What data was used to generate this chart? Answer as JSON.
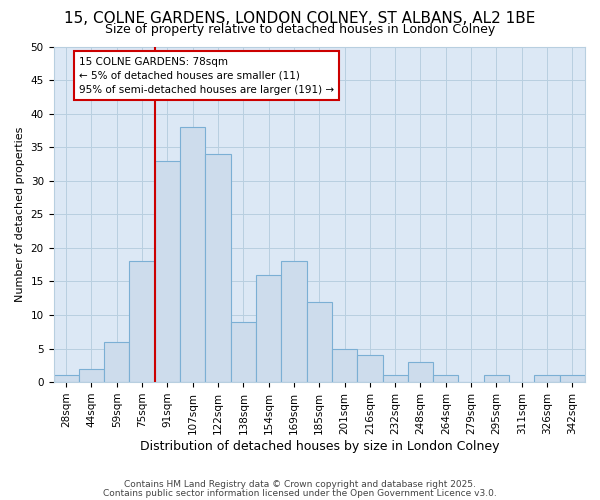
{
  "title_line1": "15, COLNE GARDENS, LONDON COLNEY, ST ALBANS, AL2 1BE",
  "title_line2": "Size of property relative to detached houses in London Colney",
  "xlabel": "Distribution of detached houses by size in London Colney",
  "ylabel": "Number of detached properties",
  "categories": [
    "28sqm",
    "44sqm",
    "59sqm",
    "75sqm",
    "91sqm",
    "107sqm",
    "122sqm",
    "138sqm",
    "154sqm",
    "169sqm",
    "185sqm",
    "201sqm",
    "216sqm",
    "232sqm",
    "248sqm",
    "264sqm",
    "279sqm",
    "295sqm",
    "311sqm",
    "326sqm",
    "342sqm"
  ],
  "values": [
    1,
    2,
    6,
    18,
    33,
    38,
    34,
    9,
    16,
    18,
    12,
    5,
    4,
    1,
    3,
    1,
    0,
    1,
    0,
    1,
    1
  ],
  "bar_color": "#cddcec",
  "bar_edge_color": "#7bafd4",
  "vline_index": 3,
  "vline_color": "#cc0000",
  "annotation_text": "15 COLNE GARDENS: 78sqm\n← 5% of detached houses are smaller (11)\n95% of semi-detached houses are larger (191) →",
  "annotation_box_color": "#ffffff",
  "annotation_box_edge": "#cc0000",
  "ylim": [
    0,
    50
  ],
  "yticks": [
    0,
    5,
    10,
    15,
    20,
    25,
    30,
    35,
    40,
    45,
    50
  ],
  "footnote1": "Contains HM Land Registry data © Crown copyright and database right 2025.",
  "footnote2": "Contains public sector information licensed under the Open Government Licence v3.0.",
  "fig_bg_color": "#ffffff",
  "plot_bg_color": "#dce8f5",
  "grid_color": "#b8cfe0",
  "title_fontsize": 11,
  "subtitle_fontsize": 9,
  "xlabel_fontsize": 9,
  "ylabel_fontsize": 8,
  "tick_fontsize": 7.5,
  "annot_fontsize": 7.5,
  "footnote_fontsize": 6.5
}
